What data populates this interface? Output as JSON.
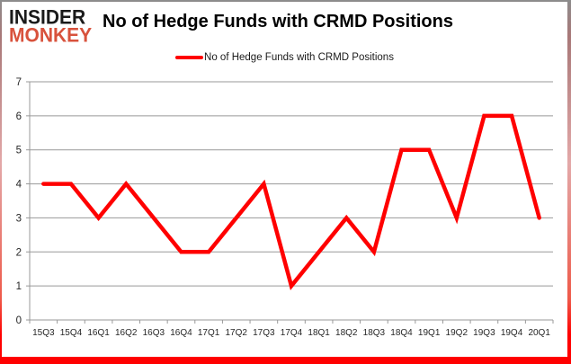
{
  "logo": {
    "line1": "INSIDER",
    "line2": "MONKEY"
  },
  "header": {
    "title": "No of Hedge Funds with CRMD Positions"
  },
  "legend": {
    "label": "No of Hedge Funds with CRMD Positions"
  },
  "colors": {
    "line": "#ff0000",
    "grid": "#999999",
    "axis": "#999999",
    "tick_label": "#262626",
    "title": "#000000",
    "logo_top": "#1a1a1a",
    "logo_bottom": "#d8523c",
    "frame_top": "#8c8c8c",
    "frame_bottom": "#ff0000",
    "background": "#ffffff"
  },
  "chart_data": {
    "type": "line",
    "title": "No of Hedge Funds with CRMD Positions",
    "categories": [
      "15Q3",
      "15Q4",
      "16Q1",
      "16Q2",
      "16Q3",
      "16Q4",
      "17Q1",
      "17Q2",
      "17Q3",
      "17Q4",
      "18Q1",
      "18Q2",
      "18Q3",
      "18Q4",
      "19Q1",
      "19Q2",
      "19Q3",
      "19Q4",
      "20Q1"
    ],
    "series": [
      {
        "name": "No of Hedge Funds with CRMD Positions",
        "values": [
          4,
          4,
          3,
          4,
          3,
          2,
          2,
          3,
          4,
          1,
          2,
          3,
          2,
          5,
          5,
          3,
          6,
          6,
          3
        ]
      }
    ],
    "xlabel": "",
    "ylabel": "",
    "ylim": [
      0,
      7
    ],
    "ytick_step": 1,
    "yticks": [
      0,
      1,
      2,
      3,
      4,
      5,
      6,
      7
    ],
    "grid": true,
    "legend_position": "top-center"
  }
}
